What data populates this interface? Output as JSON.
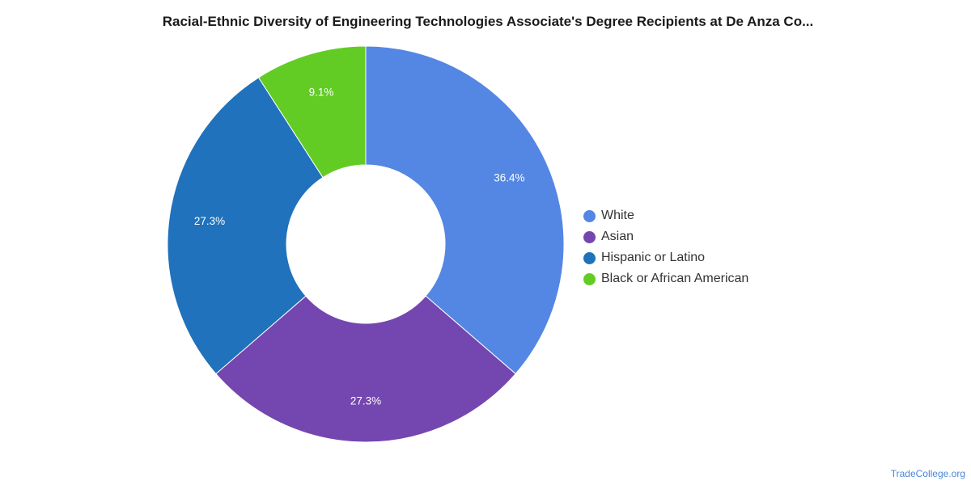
{
  "chart_data": {
    "type": "pie",
    "title": "Racial-Ethnic Diversity of Engineering Technologies Associate's Degree Recipients at De Anza Co...",
    "slices": [
      {
        "label": "White",
        "value": 36.4,
        "display": "36.4%",
        "color": "#5486e3"
      },
      {
        "label": "Asian",
        "value": 27.3,
        "display": "27.3%",
        "color": "#7446b0"
      },
      {
        "label": "Hispanic or Latino",
        "value": 27.3,
        "display": "27.3%",
        "color": "#1f72bb"
      },
      {
        "label": "Black or African American",
        "value": 9.1,
        "display": "9.1%",
        "color": "#62cc24"
      }
    ],
    "donut": true,
    "legend": "right"
  },
  "source_credit": "TradeCollege.org"
}
